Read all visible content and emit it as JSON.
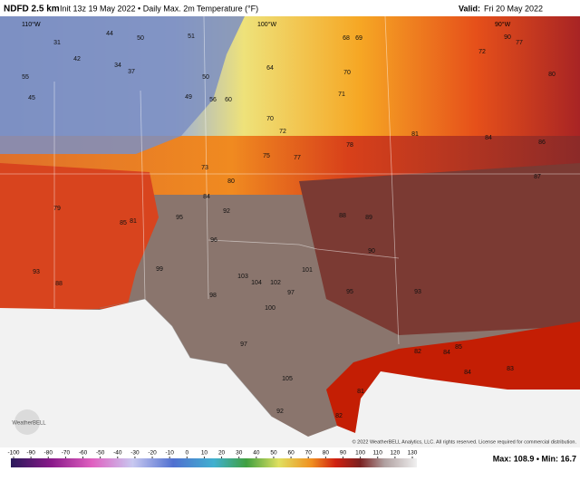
{
  "header": {
    "model": "NDFD 2.5 km",
    "init": "Init 13z 19 May 2022 • Daily Max. 2m Temperature (°F)",
    "valid_label": "Valid:",
    "valid_date": "Fri 20 May 2022"
  },
  "longitudes": [
    "110°W",
    "100°W",
    "90°W"
  ],
  "map_labels": [
    "44",
    "31",
    "50",
    "51",
    "42",
    "34",
    "37",
    "55",
    "45",
    "50",
    "49",
    "56",
    "60",
    "64",
    "68",
    "69",
    "70",
    "71",
    "72",
    "70",
    "75",
    "78",
    "81",
    "84",
    "86",
    "87",
    "88",
    "89",
    "90",
    "95",
    "92",
    "96",
    "99",
    "103",
    "104",
    "102",
    "100",
    "97",
    "101",
    "93",
    "95",
    "82",
    "84",
    "85",
    "83",
    "84",
    "81",
    "82",
    "92",
    "105",
    "98",
    "97",
    "93",
    "88",
    "79",
    "85",
    "81",
    "73",
    "80",
    "84",
    "77",
    "72",
    "77",
    "80",
    "90"
  ],
  "logo": "WeatherBELL",
  "copyright": "© 2022 WeatherBELL Analytics, LLC. All rights reserved. License required for commercial distribution.",
  "colorbar": {
    "ticks": [
      -100,
      -90,
      -80,
      -70,
      -60,
      -50,
      -40,
      -30,
      -20,
      -10,
      0,
      10,
      20,
      30,
      40,
      50,
      60,
      70,
      80,
      90,
      100,
      110,
      120,
      130
    ]
  },
  "max_min": "Max: 108.9 • Min: 16.7"
}
